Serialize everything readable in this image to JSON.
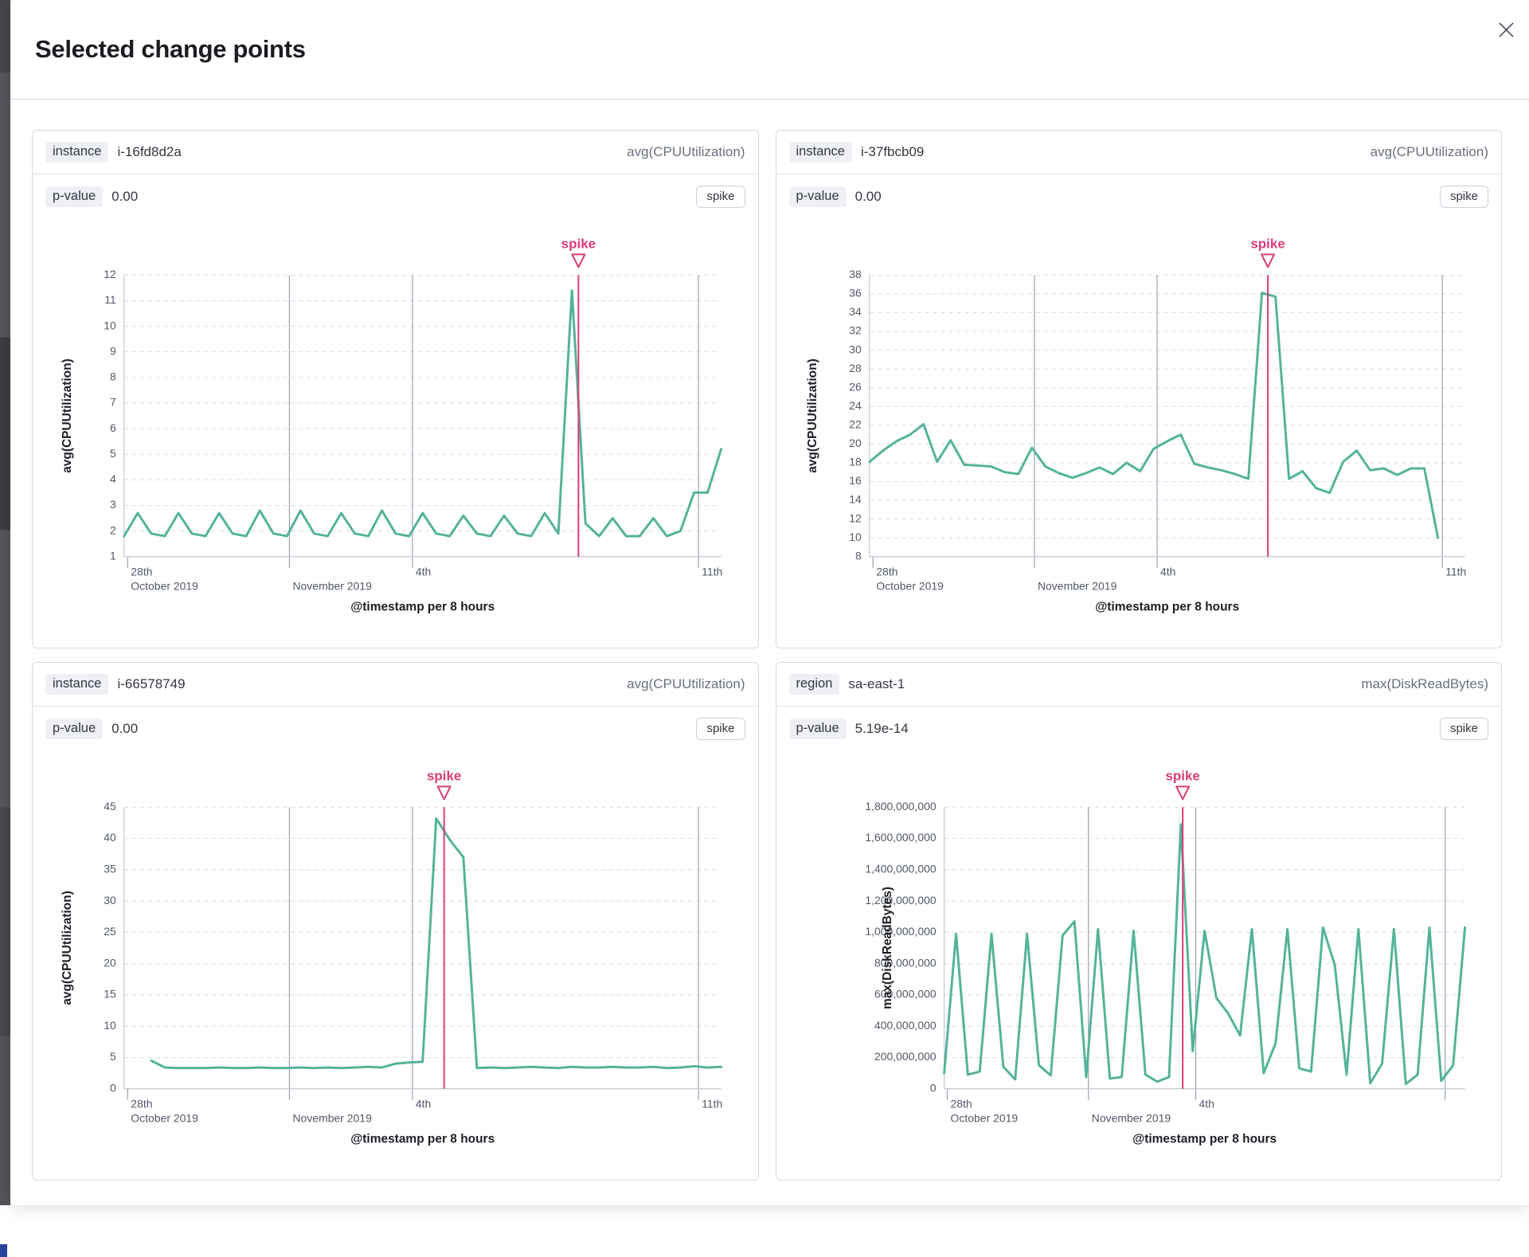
{
  "modal": {
    "title": "Selected change points"
  },
  "panels": [
    {
      "field_label": "instance",
      "field_value": "i-16fd8d2a",
      "metric": "avg(CPUUtilization)",
      "p_label": "p-value",
      "p_value": "0.00",
      "badge": "spike"
    },
    {
      "field_label": "instance",
      "field_value": "i-37fbcb09",
      "metric": "avg(CPUUtilization)",
      "p_label": "p-value",
      "p_value": "0.00",
      "badge": "spike"
    },
    {
      "field_label": "instance",
      "field_value": "i-66578749",
      "metric": "avg(CPUUtilization)",
      "p_label": "p-value",
      "p_value": "0.00",
      "badge": "spike"
    },
    {
      "field_label": "region",
      "field_value": "sa-east-1",
      "metric": "max(DiskReadBytes)",
      "p_label": "p-value",
      "p_value": "5.19e-14",
      "badge": "spike"
    }
  ],
  "colors": {
    "series": "#54b399",
    "accent": "#da3b78",
    "grid_dashed": "#d6dbe4",
    "grid_date": "#98a1ae",
    "axis": "#c9cfda",
    "tick_text": "#515866",
    "axis_title_text": "#1b1e24"
  },
  "chart_data": [
    {
      "type": "line",
      "ylabel": "avg(CPUUtilization)",
      "xlabel": "@timestamp per 8 hours",
      "ylim": [
        1,
        12
      ],
      "ytick_step": 1,
      "ytick_commas": false,
      "left_margin": 115,
      "x_slots": 45,
      "annotation": "spike",
      "spike_frac": 0.761,
      "x_ticks": [
        {
          "frac": 0.006,
          "line1": "28th",
          "line2": "October 2019",
          "grid": false
        },
        {
          "frac": 0.277,
          "line1": "",
          "line2": "November 2019",
          "grid": true
        },
        {
          "frac": 0.483,
          "line1": "4th",
          "line2": "",
          "grid": true
        },
        {
          "frac": 0.962,
          "line1": "11th",
          "line2": "",
          "grid": true
        }
      ],
      "values": [
        1.8,
        2.7,
        1.9,
        1.8,
        2.7,
        1.9,
        1.8,
        2.7,
        1.9,
        1.8,
        2.8,
        1.9,
        1.8,
        2.8,
        1.9,
        1.8,
        2.7,
        1.9,
        1.8,
        2.8,
        1.9,
        1.8,
        2.7,
        1.9,
        1.8,
        2.6,
        1.9,
        1.8,
        2.6,
        1.9,
        1.8,
        2.7,
        1.9,
        11.4,
        2.3,
        1.8,
        2.5,
        1.8,
        1.8,
        2.5,
        1.8,
        2.0,
        3.5,
        3.5,
        5.2
      ]
    },
    {
      "type": "line",
      "ylabel": "avg(CPUUtilization)",
      "xlabel": "@timestamp per 8 hours",
      "ylim": [
        8,
        38
      ],
      "ytick_step": 2,
      "ytick_commas": false,
      "left_margin": 117,
      "x_slots": 45,
      "annotation": "spike",
      "spike_frac": 0.669,
      "x_ticks": [
        {
          "frac": 0.006,
          "line1": "28th",
          "line2": "October 2019",
          "grid": false
        },
        {
          "frac": 0.277,
          "line1": "",
          "line2": "November 2019",
          "grid": true
        },
        {
          "frac": 0.483,
          "line1": "4th",
          "line2": "",
          "grid": true
        },
        {
          "frac": 0.962,
          "line1": "11th",
          "line2": "",
          "grid": true
        }
      ],
      "values": [
        18.1,
        19.3,
        20.3,
        21.0,
        22.1,
        18.1,
        20.4,
        17.8,
        17.7,
        17.6,
        17.0,
        16.8,
        19.6,
        17.6,
        16.9,
        16.4,
        16.9,
        17.5,
        16.8,
        18.0,
        17.1,
        19.5,
        20.3,
        21.0,
        17.9,
        17.5,
        17.2,
        16.8,
        16.3,
        36.1,
        35.7,
        16.3,
        17.1,
        15.3,
        14.8,
        18.1,
        19.3,
        17.2,
        17.4,
        16.7,
        17.4,
        17.4,
        10.0
      ]
    },
    {
      "type": "line",
      "ylabel": "avg(CPUUtilization)",
      "xlabel": "@timestamp per 8 hours",
      "ylim": [
        0,
        45
      ],
      "ytick_step": 5,
      "ytick_commas": false,
      "left_margin": 115,
      "x_slots": 45,
      "annotation": "spike",
      "spike_frac": 0.536,
      "x_ticks": [
        {
          "frac": 0.006,
          "line1": "28th",
          "line2": "October 2019",
          "grid": false
        },
        {
          "frac": 0.277,
          "line1": "",
          "line2": "November 2019",
          "grid": true
        },
        {
          "frac": 0.483,
          "line1": "4th",
          "line2": "",
          "grid": true
        },
        {
          "frac": 0.962,
          "line1": "11th",
          "line2": "",
          "grid": true
        }
      ],
      "values": [
        null,
        null,
        4.5,
        3.4,
        3.3,
        3.3,
        3.3,
        3.4,
        3.3,
        3.3,
        3.4,
        3.3,
        3.3,
        3.4,
        3.3,
        3.4,
        3.3,
        3.4,
        3.5,
        3.4,
        4.0,
        4.2,
        4.3,
        43.2,
        39.8,
        37.0,
        3.3,
        3.4,
        3.3,
        3.4,
        3.5,
        3.4,
        3.3,
        3.5,
        3.4,
        3.4,
        3.5,
        3.4,
        3.4,
        3.5,
        3.3,
        3.4,
        3.6,
        3.4,
        3.5
      ]
    },
    {
      "type": "line",
      "ylabel": "max(DiskReadBytes)",
      "xlabel": "@timestamp per 8 hours",
      "ylim": [
        0,
        1800000000
      ],
      "ytick_step": 200000000,
      "ytick_commas": true,
      "left_margin": 211,
      "x_slots": 45,
      "annotation": "spike",
      "spike_frac": 0.458,
      "x_ticks": [
        {
          "frac": 0.006,
          "line1": "28th",
          "line2": "October 2019",
          "grid": false
        },
        {
          "frac": 0.277,
          "line1": "",
          "line2": "November 2019",
          "grid": true
        },
        {
          "frac": 0.483,
          "line1": "4th",
          "line2": "",
          "grid": true
        },
        {
          "frac": 0.962,
          "line1": "",
          "line2": "",
          "grid": true
        }
      ],
      "values": [
        100000000,
        990000000,
        90000000,
        110000000,
        990000000,
        140000000,
        60000000,
        990000000,
        150000000,
        85000000,
        980000000,
        1070000000,
        75000000,
        1020000000,
        65000000,
        75000000,
        1010000000,
        90000000,
        45000000,
        75000000,
        1690000000,
        240000000,
        1010000000,
        580000000,
        480000000,
        340000000,
        1020000000,
        100000000,
        290000000,
        1020000000,
        130000000,
        110000000,
        1030000000,
        790000000,
        90000000,
        1020000000,
        35000000,
        160000000,
        1020000000,
        30000000,
        90000000,
        1030000000,
        50000000,
        150000000,
        1030000000
      ]
    }
  ]
}
